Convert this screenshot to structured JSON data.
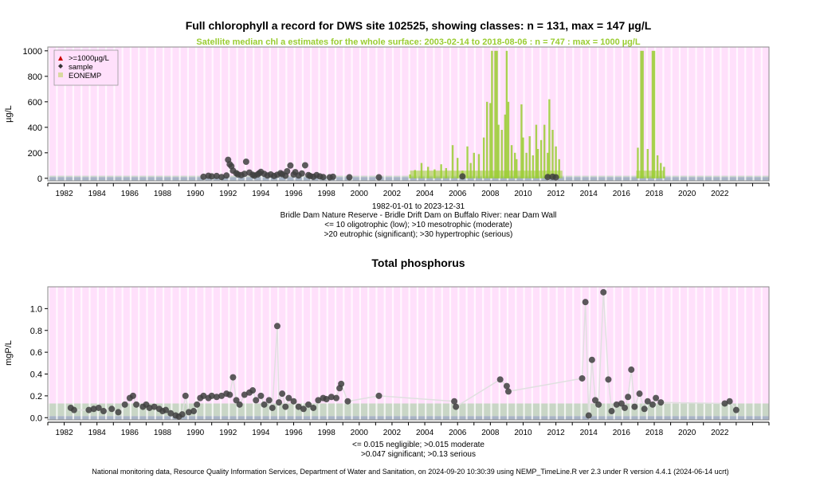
{
  "chart_data": [
    {
      "type": "scatter",
      "title": "Full chlorophyll a record for DWS site 102525, showing classes: n = 131, max = 147 µg/L",
      "subtitle": "Satellite median chl a estimates for the whole surface: 2003-02-14 to 2018-08-06 : n = 747 : max = 1000 µg/L",
      "ylabel": "µg/L",
      "xlim": [
        1981.0,
        2025.0
      ],
      "ylim": [
        -20,
        1030
      ],
      "x_ticks": [
        "1982",
        "1984",
        "1986",
        "1988",
        "1990",
        "1992",
        "1994",
        "1996",
        "1998",
        "2000",
        "2002",
        "2004",
        "2006",
        "2008",
        "2010",
        "2012",
        "2014",
        "2016",
        "2018",
        "2020",
        "2022"
      ],
      "y_ticks": [
        0,
        200,
        400,
        600,
        800,
        1000
      ],
      "legend": {
        "placement": "top-left",
        "entries": [
          {
            "label": ">=1000µg/L",
            "color": "#cc0000"
          },
          {
            "label": "sample",
            "color": "#333333"
          },
          {
            "label": "EONEMP",
            "color": "#d9d9a0"
          }
        ]
      },
      "colors": {
        "background": "#ffe0fb",
        "band": "#cdd8cd",
        "sample": "#404040",
        "satellite": "#9acd32"
      },
      "class_bands": [
        {
          "from": 0,
          "to": 10,
          "color": "#a8b4c6"
        },
        {
          "from": 10,
          "to": 20,
          "color": "#cdd8cd"
        }
      ],
      "samples": [
        [
          1990.5,
          12
        ],
        [
          1990.8,
          20
        ],
        [
          1991.0,
          15
        ],
        [
          1991.3,
          18
        ],
        [
          1991.6,
          10
        ],
        [
          1991.9,
          22
        ],
        [
          1992.0,
          145
        ],
        [
          1992.1,
          110
        ],
        [
          1992.2,
          95
        ],
        [
          1992.3,
          60
        ],
        [
          1992.5,
          40
        ],
        [
          1992.6,
          30
        ],
        [
          1992.8,
          25
        ],
        [
          1993.0,
          35
        ],
        [
          1993.1,
          130
        ],
        [
          1993.3,
          45
        ],
        [
          1993.5,
          28
        ],
        [
          1993.6,
          20
        ],
        [
          1993.8,
          30
        ],
        [
          1993.9,
          40
        ],
        [
          1994.0,
          50
        ],
        [
          1994.2,
          35
        ],
        [
          1994.4,
          22
        ],
        [
          1994.6,
          30
        ],
        [
          1994.8,
          18
        ],
        [
          1995.0,
          28
        ],
        [
          1995.2,
          40
        ],
        [
          1995.3,
          32
        ],
        [
          1995.5,
          20
        ],
        [
          1995.6,
          55
        ],
        [
          1995.8,
          100
        ],
        [
          1996.0,
          30
        ],
        [
          1996.1,
          48
        ],
        [
          1996.3,
          22
        ],
        [
          1996.5,
          38
        ],
        [
          1996.7,
          102
        ],
        [
          1996.9,
          25
        ],
        [
          1997.0,
          18
        ],
        [
          1997.2,
          12
        ],
        [
          1997.4,
          25
        ],
        [
          1997.6,
          15
        ],
        [
          1997.8,
          10
        ],
        [
          1998.2,
          8
        ],
        [
          1998.4,
          12
        ],
        [
          1999.4,
          8
        ],
        [
          2001.2,
          8
        ],
        [
          2006.3,
          15
        ],
        [
          2011.5,
          10
        ],
        [
          2011.8,
          12
        ],
        [
          2012.0,
          8
        ]
      ],
      "satellite_spikes": [
        [
          2003.1,
          30
        ],
        [
          2003.4,
          65
        ],
        [
          2003.8,
          120
        ],
        [
          2004.2,
          90
        ],
        [
          2004.6,
          70
        ],
        [
          2005.0,
          110
        ],
        [
          2005.3,
          80
        ],
        [
          2005.7,
          260
        ],
        [
          2006.0,
          160
        ],
        [
          2006.3,
          60
        ],
        [
          2006.6,
          250
        ],
        [
          2006.8,
          120
        ],
        [
          2007.0,
          200
        ],
        [
          2007.3,
          190
        ],
        [
          2007.6,
          320
        ],
        [
          2007.8,
          600
        ],
        [
          2008.0,
          590
        ],
        [
          2008.1,
          1000
        ],
        [
          2008.3,
          1000
        ],
        [
          2008.4,
          1000
        ],
        [
          2008.5,
          420
        ],
        [
          2008.7,
          380
        ],
        [
          2008.9,
          500
        ],
        [
          2009.0,
          1000
        ],
        [
          2009.1,
          600
        ],
        [
          2009.3,
          260
        ],
        [
          2009.5,
          200
        ],
        [
          2009.6,
          150
        ],
        [
          2009.9,
          580
        ],
        [
          2010.0,
          320
        ],
        [
          2010.2,
          200
        ],
        [
          2010.4,
          330
        ],
        [
          2010.6,
          180
        ],
        [
          2010.8,
          420
        ],
        [
          2010.9,
          230
        ],
        [
          2011.1,
          300
        ],
        [
          2011.3,
          420
        ],
        [
          2011.5,
          200
        ],
        [
          2011.6,
          620
        ],
        [
          2011.8,
          380
        ],
        [
          2012.0,
          250
        ],
        [
          2012.2,
          150
        ],
        [
          2017.0,
          240
        ],
        [
          2017.2,
          1000
        ],
        [
          2017.3,
          1000
        ],
        [
          2017.6,
          230
        ],
        [
          2017.9,
          1000
        ],
        [
          2018.0,
          1000
        ],
        [
          2018.2,
          180
        ],
        [
          2018.4,
          120
        ],
        [
          2018.6,
          90
        ]
      ],
      "footer_lines": [
        "1982-01-01 to 2023-12-31",
        "Bridle Dam Nature Reserve - Bridle Drift Dam on Buffalo River: near Dam Wall",
        "<= 10 oligotrophic (low); >10 mesotrophic (moderate)",
        ">20 eutrophic (significant); >30 hypertrophic (serious)"
      ]
    },
    {
      "type": "scatter",
      "title": "Total phosphorus",
      "ylabel": "mgP/L",
      "xlim": [
        1981.0,
        2025.0
      ],
      "ylim": [
        -0.02,
        1.2
      ],
      "x_ticks": [
        "1982",
        "1984",
        "1986",
        "1988",
        "1990",
        "1992",
        "1994",
        "1996",
        "1998",
        "2000",
        "2002",
        "2004",
        "2006",
        "2008",
        "2010",
        "2012",
        "2014",
        "2016",
        "2018",
        "2020",
        "2022"
      ],
      "y_ticks": [
        "0.0",
        "0.2",
        "0.4",
        "0.6",
        "0.8",
        "1.0"
      ],
      "colors": {
        "background": "#ffe0fb",
        "band": "#c9d6c6",
        "sample": "#404040",
        "line": "#e0e0e0"
      },
      "class_bands": [
        {
          "from": 0,
          "to": 0.015,
          "color": "#a8b4c6"
        },
        {
          "from": 0.015,
          "to": 0.13,
          "color": "#c9d6c6"
        }
      ],
      "samples": [
        [
          1982.4,
          0.09
        ],
        [
          1982.6,
          0.07
        ],
        [
          1983.5,
          0.07
        ],
        [
          1983.8,
          0.08
        ],
        [
          1984.1,
          0.09
        ],
        [
          1984.4,
          0.06
        ],
        [
          1984.9,
          0.08
        ],
        [
          1985.3,
          0.05
        ],
        [
          1985.7,
          0.12
        ],
        [
          1986.0,
          0.18
        ],
        [
          1986.2,
          0.2
        ],
        [
          1986.4,
          0.12
        ],
        [
          1986.8,
          0.1
        ],
        [
          1987.0,
          0.12
        ],
        [
          1987.2,
          0.09
        ],
        [
          1987.5,
          0.1
        ],
        [
          1987.8,
          0.08
        ],
        [
          1988.0,
          0.06
        ],
        [
          1988.2,
          0.07
        ],
        [
          1988.5,
          0.04
        ],
        [
          1988.8,
          0.02
        ],
        [
          1989.0,
          0.01
        ],
        [
          1989.2,
          0.03
        ],
        [
          1989.4,
          0.2
        ],
        [
          1989.6,
          0.05
        ],
        [
          1989.9,
          0.06
        ],
        [
          1990.1,
          0.12
        ],
        [
          1990.3,
          0.18
        ],
        [
          1990.5,
          0.2
        ],
        [
          1990.8,
          0.18
        ],
        [
          1991.0,
          0.2
        ],
        [
          1991.3,
          0.19
        ],
        [
          1991.6,
          0.2
        ],
        [
          1991.9,
          0.22
        ],
        [
          1992.1,
          0.21
        ],
        [
          1992.3,
          0.37
        ],
        [
          1992.5,
          0.16
        ],
        [
          1992.7,
          0.12
        ],
        [
          1993.0,
          0.21
        ],
        [
          1993.3,
          0.23
        ],
        [
          1993.5,
          0.25
        ],
        [
          1993.7,
          0.16
        ],
        [
          1994.0,
          0.2
        ],
        [
          1994.2,
          0.12
        ],
        [
          1994.5,
          0.16
        ],
        [
          1994.7,
          0.09
        ],
        [
          1995.0,
          0.84
        ],
        [
          1995.1,
          0.14
        ],
        [
          1995.3,
          0.22
        ],
        [
          1995.5,
          0.1
        ],
        [
          1995.7,
          0.18
        ],
        [
          1996.0,
          0.15
        ],
        [
          1996.3,
          0.1
        ],
        [
          1996.6,
          0.08
        ],
        [
          1996.9,
          0.12
        ],
        [
          1997.2,
          0.09
        ],
        [
          1997.5,
          0.16
        ],
        [
          1997.8,
          0.18
        ],
        [
          1998.0,
          0.17
        ],
        [
          1998.3,
          0.19
        ],
        [
          1998.6,
          0.18
        ],
        [
          1998.8,
          0.27
        ],
        [
          1998.9,
          0.31
        ],
        [
          1999.3,
          0.15
        ],
        [
          2001.2,
          0.2
        ],
        [
          2005.8,
          0.15
        ],
        [
          2005.9,
          0.1
        ],
        [
          2008.6,
          0.35
        ],
        [
          2009.0,
          0.29
        ],
        [
          2009.1,
          0.24
        ],
        [
          2013.6,
          0.36
        ],
        [
          2013.8,
          1.06
        ],
        [
          2014.0,
          0.02
        ],
        [
          2014.2,
          0.53
        ],
        [
          2014.4,
          0.16
        ],
        [
          2014.6,
          0.12
        ],
        [
          2014.9,
          1.15
        ],
        [
          2015.2,
          0.35
        ],
        [
          2015.4,
          0.06
        ],
        [
          2015.7,
          0.12
        ],
        [
          2016.0,
          0.13
        ],
        [
          2016.2,
          0.09
        ],
        [
          2016.4,
          0.19
        ],
        [
          2016.6,
          0.44
        ],
        [
          2016.8,
          0.1
        ],
        [
          2017.1,
          0.22
        ],
        [
          2017.4,
          0.08
        ],
        [
          2017.6,
          0.15
        ],
        [
          2017.9,
          0.12
        ],
        [
          2018.1,
          0.18
        ],
        [
          2018.4,
          0.14
        ],
        [
          2022.3,
          0.13
        ],
        [
          2022.6,
          0.15
        ],
        [
          2023.0,
          0.07
        ]
      ],
      "footer_lines": [
        "<= 0.015 negligible; >0.015 moderate",
        ">0.047 significant; >0.13 serious"
      ]
    }
  ],
  "credit": "National monitoring data, Resource Quality Information Services, Department of Water and Sanitation, on 2024-09-20 10:30:39 using NEMP_TimeLine.R ver 2.3 under R version 4.4.1 (2024-06-14 ucrt)"
}
